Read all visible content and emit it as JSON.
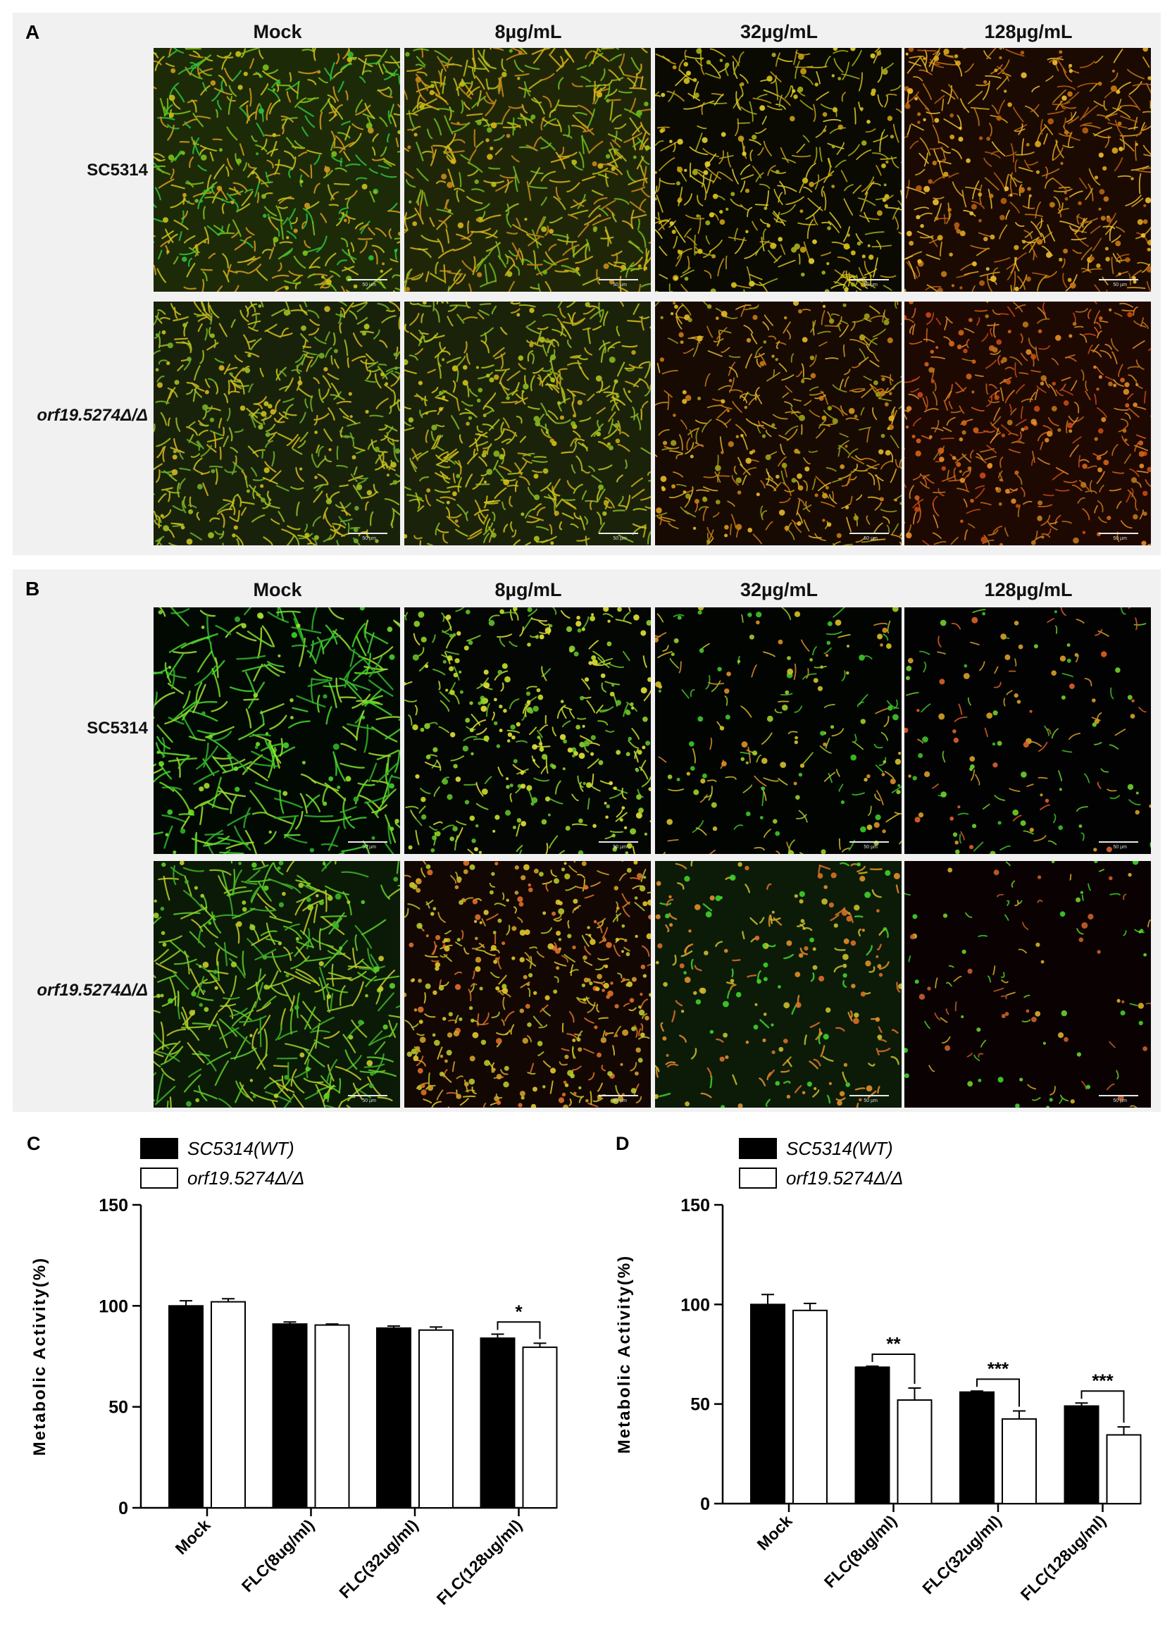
{
  "panels": {
    "A": {
      "letter": "A",
      "columns": [
        "Mock",
        "8µg/mL",
        "32µg/mL",
        "128µg/mL"
      ],
      "rows": [
        "SC5314",
        "orf19.5274Δ/Δ"
      ],
      "scale_label": "50 µm"
    },
    "B": {
      "letter": "B",
      "columns": [
        "Mock",
        "8µg/mL",
        "32µg/mL",
        "128µg/mL"
      ],
      "rows": [
        "SC5314",
        "orf19.5274Δ/Δ"
      ],
      "scale_label": "50 µm"
    }
  },
  "chart_data": [
    {
      "letter": "C",
      "type": "bar",
      "ylabel": "Metabolic Activity(%)",
      "ylim": [
        0,
        150
      ],
      "yticks": [
        0,
        50,
        100,
        150
      ],
      "categories": [
        "Mock",
        "FLC(8ug/ml)",
        "FLC(32ug/ml)",
        "FLC(128ug/ml)"
      ],
      "series": [
        {
          "name": "SC5314(WT)",
          "color": "#000000",
          "values": [
            100,
            91,
            89,
            84
          ],
          "errors": [
            2.5,
            1,
            1,
            2
          ]
        },
        {
          "name": "orf19.5274Δ/Δ",
          "color": "#ffffff",
          "values": [
            102,
            90.5,
            88,
            79.5
          ],
          "errors": [
            1.5,
            0.5,
            1.5,
            2
          ]
        }
      ],
      "significance": [
        {
          "category_index": 3,
          "label": "*"
        }
      ],
      "legend_position": "top-left"
    },
    {
      "letter": "D",
      "type": "bar",
      "ylabel": "Metabolic Activity(%)",
      "ylim": [
        0,
        150
      ],
      "yticks": [
        0,
        50,
        100,
        150
      ],
      "categories": [
        "Mock",
        "FLC(8ug/ml)",
        "FLC(32ug/ml)",
        "FLC(128ug/ml)"
      ],
      "series": [
        {
          "name": "SC5314(WT)",
          "color": "#000000",
          "values": [
            100,
            68.5,
            56,
            49
          ],
          "errors": [
            5,
            0.5,
            0.5,
            1.5
          ]
        },
        {
          "name": "orf19.5274Δ/Δ",
          "color": "#ffffff",
          "values": [
            97,
            52,
            42.5,
            34.5
          ],
          "errors": [
            3.5,
            6,
            4,
            4
          ]
        }
      ],
      "significance": [
        {
          "category_index": 1,
          "label": "**"
        },
        {
          "category_index": 2,
          "label": "***"
        },
        {
          "category_index": 3,
          "label": "***"
        }
      ],
      "legend_position": "top-left"
    }
  ]
}
